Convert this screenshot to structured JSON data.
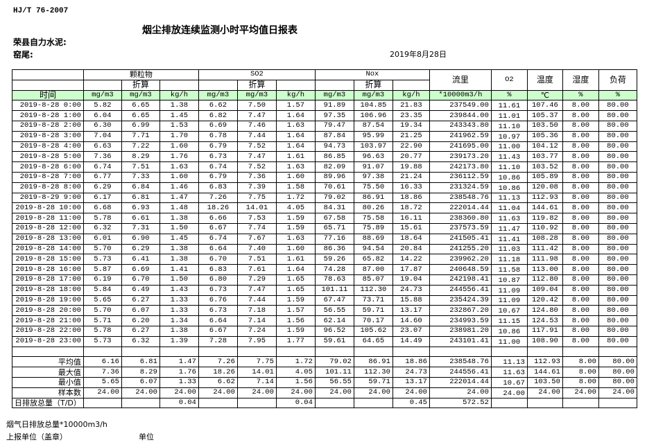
{
  "header": {
    "standard": "HJ/T  76-2007",
    "title": "烟尘排放连续监测小时平均值日报表",
    "company": "荣县自力水泥:",
    "location": "窑尾:",
    "date": "2019年8月28日"
  },
  "table": {
    "groups": {
      "particulate": "颗粒物",
      "so2": "SO2",
      "nox": "Nox",
      "flow": "流里",
      "o2": "O2",
      "temp": "温度",
      "humidity": "湿度",
      "load": "负荷"
    },
    "converted_label": "折算",
    "time_label": "时间",
    "units": [
      "mg/m3",
      "mg/m3",
      "kg/h",
      "mg/m3",
      "mg/m3",
      "kg/h",
      "mg/m3",
      "mg/m3",
      "kg/h",
      "*10000m3/h",
      "%",
      "℃",
      "%",
      "%"
    ],
    "rows": [
      [
        "2019-8-28 0:00",
        "5.82",
        "6.65",
        "1.38",
        "6.62",
        "7.50",
        "1.57",
        "91.89",
        "104.85",
        "21.83",
        "237549.00",
        "11.61",
        "107.46",
        "8.00",
        "80.00"
      ],
      [
        "2019-8-28 1:00",
        "6.04",
        "6.65",
        "1.45",
        "6.82",
        "7.47",
        "1.64",
        "97.35",
        "106.96",
        "23.35",
        "239844.00",
        "11.01",
        "105.37",
        "8.00",
        "80.00"
      ],
      [
        "2019-8-28 2:00",
        "6.30",
        "6.99",
        "1.53",
        "6.69",
        "7.46",
        "1.63",
        "79.47",
        "87.54",
        "19.34",
        "243343.80",
        "11.10",
        "103.50",
        "8.00",
        "80.00"
      ],
      [
        "2019-8-28 3:00",
        "7.04",
        "7.71",
        "1.70",
        "6.78",
        "7.44",
        "1.64",
        "87.84",
        "95.99",
        "21.25",
        "241962.59",
        "10.97",
        "105.36",
        "8.00",
        "80.00"
      ],
      [
        "2019-8-28 4:00",
        "6.63",
        "7.22",
        "1.60",
        "6.79",
        "7.52",
        "1.64",
        "94.73",
        "103.97",
        "22.90",
        "241695.00",
        "11.00",
        "104.12",
        "8.00",
        "80.00"
      ],
      [
        "2019-8-28 5:00",
        "7.36",
        "8.29",
        "1.76",
        "6.73",
        "7.47",
        "1.61",
        "86.85",
        "96.63",
        "20.77",
        "239173.20",
        "11.43",
        "103.77",
        "8.00",
        "80.00"
      ],
      [
        "2019-8-28 6:00",
        "6.74",
        "7.51",
        "1.63",
        "6.74",
        "7.52",
        "1.63",
        "82.09",
        "91.07",
        "19.88",
        "242173.80",
        "11.10",
        "103.52",
        "8.00",
        "80.00"
      ],
      [
        "2019-8-28 7:00",
        "6.77",
        "7.33",
        "1.60",
        "6.79",
        "7.36",
        "1.60",
        "89.96",
        "97.38",
        "21.24",
        "236112.59",
        "10.86",
        "105.89",
        "8.00",
        "80.00"
      ],
      [
        "2019-8-28 8:00",
        "6.29",
        "6.84",
        "1.46",
        "6.83",
        "7.39",
        "1.58",
        "70.61",
        "75.50",
        "16.33",
        "231324.59",
        "10.86",
        "120.08",
        "8.00",
        "80.00"
      ],
      [
        "2019-8-29 9:00",
        "6.17",
        "6.81",
        "1.47",
        "7.26",
        "7.75",
        "1.72",
        "79.02",
        "86.91",
        "18.86",
        "238548.76",
        "11.13",
        "112.93",
        "8.00",
        "80.00"
      ],
      [
        "2019-8-28 10:00",
        "6.68",
        "6.93",
        "1.48",
        "18.26",
        "14.01",
        "4.05",
        "84.31",
        "80.26",
        "18.72",
        "222014.44",
        "11.04",
        "144.61",
        "8.00",
        "80.00"
      ],
      [
        "2019-8-28 11:00",
        "5.78",
        "6.61",
        "1.38",
        "6.66",
        "7.53",
        "1.59",
        "67.58",
        "75.58",
        "16.11",
        "238360.80",
        "11.63",
        "119.82",
        "8.00",
        "80.00"
      ],
      [
        "2019-8-28 12:00",
        "6.32",
        "7.31",
        "1.50",
        "6.67",
        "7.74",
        "1.59",
        "65.71",
        "75.89",
        "15.61",
        "237573.59",
        "11.47",
        "110.92",
        "8.00",
        "80.00"
      ],
      [
        "2019-8-28 13:00",
        "6.01",
        "6.90",
        "1.45",
        "6.74",
        "7.67",
        "1.63",
        "77.16",
        "88.69",
        "18.64",
        "241505.41",
        "11.41",
        "108.28",
        "8.00",
        "80.00"
      ],
      [
        "2019-8-28 14:00",
        "5.70",
        "6.29",
        "1.38",
        "6.64",
        "7.40",
        "1.60",
        "86.36",
        "94.54",
        "20.84",
        "241255.20",
        "11.03",
        "111.42",
        "8.00",
        "80.00"
      ],
      [
        "2019-8-28 15:00",
        "5.73",
        "6.41",
        "1.38",
        "6.70",
        "7.51",
        "1.61",
        "59.26",
        "65.82",
        "14.22",
        "239962.20",
        "11.18",
        "111.98",
        "8.00",
        "80.00"
      ],
      [
        "2019-8-28 16:00",
        "5.87",
        "6.69",
        "1.41",
        "6.83",
        "7.61",
        "1.64",
        "74.28",
        "87.00",
        "17.87",
        "240648.59",
        "11.58",
        "113.00",
        "8.00",
        "80.00"
      ],
      [
        "2019-8-28 17:00",
        "6.19",
        "6.70",
        "1.50",
        "6.80",
        "7.29",
        "1.65",
        "78.63",
        "85.07",
        "19.04",
        "242198.41",
        "10.87",
        "112.80",
        "8.00",
        "80.00"
      ],
      [
        "2019-8-28 18:00",
        "5.84",
        "6.49",
        "1.43",
        "6.73",
        "7.47",
        "1.65",
        "101.11",
        "112.30",
        "24.73",
        "244556.41",
        "11.09",
        "109.04",
        "8.00",
        "80.00"
      ],
      [
        "2019-8-28 19:00",
        "5.65",
        "6.27",
        "1.33",
        "6.76",
        "7.44",
        "1.59",
        "67.47",
        "73.71",
        "15.88",
        "235424.39",
        "11.09",
        "120.42",
        "8.00",
        "80.00"
      ],
      [
        "2019-8-28 20:00",
        "5.70",
        "6.07",
        "1.33",
        "6.73",
        "7.18",
        "1.57",
        "56.55",
        "59.71",
        "13.17",
        "232867.20",
        "10.67",
        "124.80",
        "8.00",
        "80.00"
      ],
      [
        "2019-8-28 21:00",
        "5.71",
        "6.20",
        "1.34",
        "6.64",
        "7.14",
        "1.56",
        "62.14",
        "70.17",
        "14.60",
        "234993.59",
        "11.15",
        "124.53",
        "8.00",
        "80.00"
      ],
      [
        "2019-8-28 22:00",
        "5.78",
        "6.27",
        "1.38",
        "6.67",
        "7.24",
        "1.59",
        "96.52",
        "105.62",
        "23.07",
        "238981.20",
        "10.86",
        "117.91",
        "8.00",
        "80.00"
      ],
      [
        "2019-8-28 23:00",
        "5.73",
        "6.32",
        "1.39",
        "7.28",
        "7.95",
        "1.77",
        "59.61",
        "64.65",
        "14.49",
        "243101.41",
        "11.00",
        "108.90",
        "8.00",
        "80.00"
      ]
    ],
    "summary": [
      [
        "平均值",
        "6.16",
        "6.81",
        "1.47",
        "7.26",
        "7.75",
        "1.72",
        "79.02",
        "86.91",
        "18.86",
        "238548.76",
        "11.13",
        "112.93",
        "8.00",
        "80.00"
      ],
      [
        "最大值",
        "7.36",
        "8.29",
        "1.76",
        "18.26",
        "14.01",
        "4.05",
        "101.11",
        "112.30",
        "24.73",
        "244556.41",
        "11.63",
        "144.61",
        "8.00",
        "80.00"
      ],
      [
        "最小值",
        "5.65",
        "6.07",
        "1.33",
        "6.62",
        "7.14",
        "1.56",
        "56.55",
        "59.71",
        "13.17",
        "222014.44",
        "10.67",
        "103.50",
        "8.00",
        "80.00"
      ],
      [
        "样本数",
        "24.00",
        "24.00",
        "24.00",
        "24.00",
        "24.00",
        "24.00",
        "24.00",
        "24.00",
        "24.00",
        "24.00",
        "24.00",
        "24.00",
        "24.00",
        "24.00"
      ],
      [
        "日排放总量（T/D）",
        "",
        "",
        "0.04",
        "",
        "",
        "0.04",
        "",
        "",
        "0.45",
        "572.52",
        "",
        "",
        "",
        ""
      ]
    ]
  },
  "footer": {
    "flue_total": "烟气日排放总量*10000m3/h",
    "reporting_unit": "上报单位（盖章）",
    "unit": "单位"
  },
  "colors": {
    "units_row_bg": "#ccffcc"
  }
}
